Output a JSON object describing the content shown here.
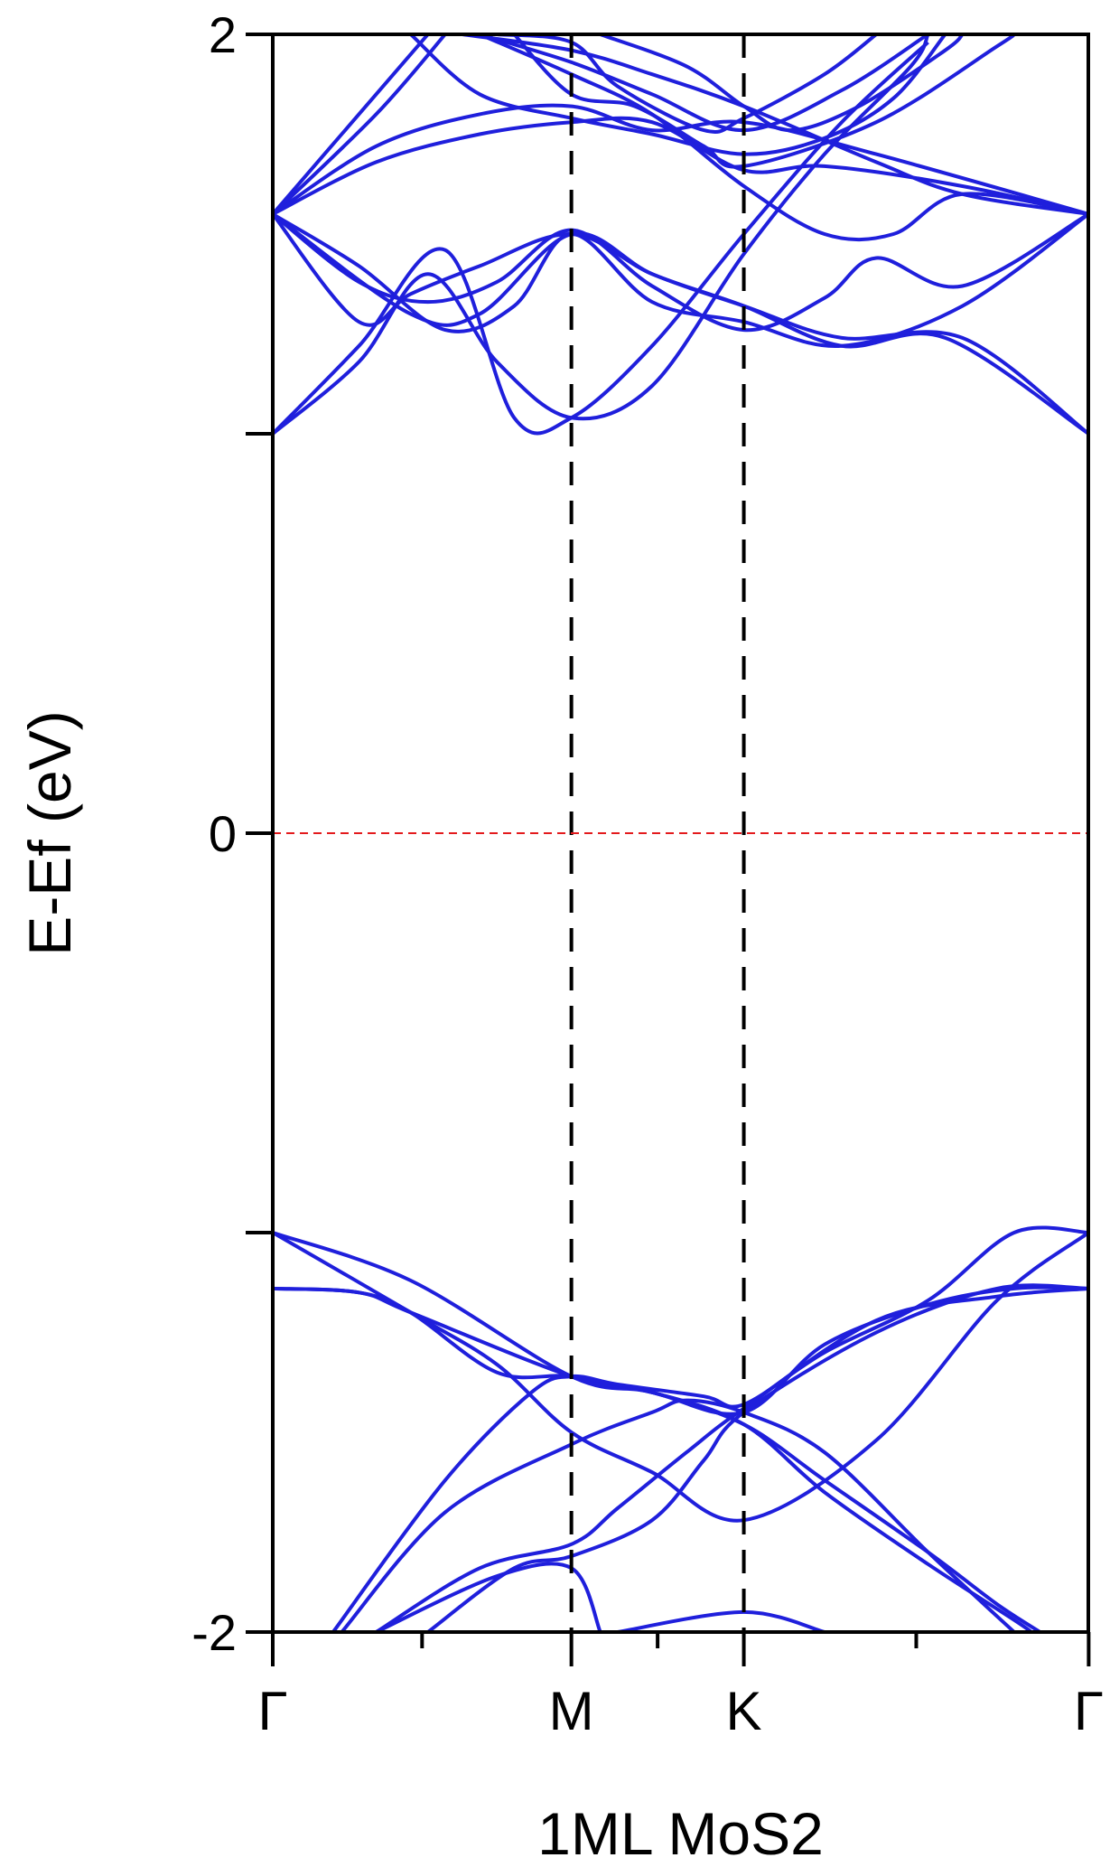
{
  "chart_data": {
    "type": "line",
    "title": "",
    "xlabel": "1ML MoS2",
    "ylabel": "E-Ef (eV)",
    "ylim": [
      -2,
      2
    ],
    "y_ticks": [
      -2,
      -1,
      0,
      1,
      2
    ],
    "y_tick_labels": [
      "-2",
      "",
      "0",
      "",
      "2"
    ],
    "x_range": [
      0,
      4.73
    ],
    "k_points": [
      {
        "label": "Γ",
        "x": 0
      },
      {
        "label": "M",
        "x": 1.732
      },
      {
        "label": "K",
        "x": 2.732
      },
      {
        "label": "Γ",
        "x": 4.732
      }
    ],
    "fermi_level": 0,
    "grid": false,
    "legend": "none",
    "colors": {
      "bands": "#1f1fdc",
      "fermi": "#e31a1c",
      "highsym": "#000000"
    },
    "bands": [
      {
        "name": "",
        "points": [
          [
            0,
            -1.0
          ],
          [
            0.8,
            -1.2
          ],
          [
            1.3,
            -1.33
          ],
          [
            1.732,
            -1.5
          ],
          [
            2.2,
            -1.6
          ],
          [
            2.732,
            -1.72
          ],
          [
            3.5,
            -1.52
          ],
          [
            4.2,
            -1.17
          ],
          [
            4.732,
            -1.0
          ]
        ]
      },
      {
        "name": "",
        "points": [
          [
            0,
            -1.0
          ],
          [
            0.8,
            -1.12
          ],
          [
            1.732,
            -1.36
          ],
          [
            2.2,
            -1.4
          ],
          [
            2.732,
            -1.48
          ],
          [
            3.2,
            -1.62
          ],
          [
            3.8,
            -1.8
          ],
          [
            4.2,
            -1.93
          ],
          [
            4.45,
            -2.0
          ]
        ]
      },
      {
        "name": "",
        "points": [
          [
            0,
            -1.14
          ],
          [
            0.5,
            -1.15
          ],
          [
            0.8,
            -1.2
          ],
          [
            1.732,
            -1.36
          ],
          [
            2.2,
            -1.4
          ],
          [
            2.732,
            -1.48
          ],
          [
            3.2,
            -1.65
          ],
          [
            3.8,
            -1.83
          ],
          [
            4.3,
            -1.97
          ],
          [
            4.4,
            -2.0
          ]
        ]
      },
      {
        "name": "",
        "points": [
          [
            0,
            -1.14
          ],
          [
            0.5,
            -1.15
          ],
          [
            0.8,
            -1.2
          ],
          [
            1.3,
            -1.35
          ],
          [
            1.732,
            -1.36
          ],
          [
            2.2,
            -1.4
          ],
          [
            2.732,
            -1.45
          ],
          [
            3.2,
            -1.28
          ],
          [
            3.8,
            -1.18
          ],
          [
            4.3,
            -1.14
          ],
          [
            4.732,
            -1.14
          ]
        ]
      },
      {
        "name": "",
        "points": [
          [
            0.35,
            -2.0
          ],
          [
            1.0,
            -1.62
          ],
          [
            1.5,
            -1.4
          ],
          [
            1.732,
            -1.36
          ],
          [
            2.0,
            -1.38
          ],
          [
            2.5,
            -1.41
          ],
          [
            2.732,
            -1.43
          ],
          [
            3.2,
            -1.3
          ],
          [
            3.8,
            -1.17
          ],
          [
            4.3,
            -1.0
          ],
          [
            4.732,
            -1.0
          ]
        ]
      },
      {
        "name": "",
        "points": [
          [
            0.4,
            -2.0
          ],
          [
            1.0,
            -1.7
          ],
          [
            1.732,
            -1.53
          ],
          [
            2.2,
            -1.45
          ],
          [
            2.4,
            -1.42
          ],
          [
            2.732,
            -1.45
          ],
          [
            3.2,
            -1.55
          ],
          [
            3.8,
            -1.8
          ],
          [
            4.3,
            -2.0
          ]
        ]
      },
      {
        "name": "",
        "points": [
          [
            0.6,
            -2.0
          ],
          [
            1.2,
            -1.84
          ],
          [
            1.732,
            -1.78
          ],
          [
            2.0,
            -1.69
          ],
          [
            2.4,
            -1.55
          ],
          [
            2.732,
            -1.44
          ],
          [
            3.5,
            -1.22
          ],
          [
            4.2,
            -1.16
          ],
          [
            4.732,
            -1.14
          ]
        ]
      },
      {
        "name": "",
        "points": [
          [
            0.9,
            -2.0
          ],
          [
            1.4,
            -1.84
          ],
          [
            1.732,
            -1.81
          ],
          [
            2.2,
            -1.72
          ],
          [
            2.5,
            -1.57
          ],
          [
            2.732,
            -1.45
          ],
          [
            3.5,
            -1.25
          ],
          [
            4.2,
            -1.14
          ],
          [
            4.732,
            -1.14
          ]
        ]
      },
      {
        "name": "",
        "points": [
          [
            0.6,
            -2.0
          ],
          [
            1.3,
            -1.86
          ],
          [
            1.732,
            -1.84
          ],
          [
            1.9,
            -2.0
          ]
        ]
      },
      {
        "name": "",
        "points": [
          [
            2.0,
            -2.0
          ],
          [
            2.732,
            -1.95
          ],
          [
            3.2,
            -2.0
          ]
        ]
      },
      {
        "name": "",
        "points": [
          [
            0,
            1.0
          ],
          [
            0.5,
            1.22
          ],
          [
            1.0,
            1.46
          ],
          [
            1.4,
            1.04
          ],
          [
            1.732,
            1.04
          ],
          [
            2.2,
            1.22
          ],
          [
            2.732,
            1.5
          ],
          [
            3.3,
            1.78
          ],
          [
            3.8,
            1.98
          ]
        ]
      },
      {
        "name": "",
        "points": [
          [
            0,
            1.0
          ],
          [
            0.5,
            1.18
          ],
          [
            0.9,
            1.4
          ],
          [
            1.3,
            1.18
          ],
          [
            1.732,
            1.04
          ],
          [
            2.2,
            1.12
          ],
          [
            2.732,
            1.45
          ],
          [
            3.2,
            1.7
          ],
          [
            3.7,
            1.92
          ],
          [
            3.8,
            2.0
          ]
        ]
      },
      {
        "name": "",
        "points": [
          [
            0,
            1.55
          ],
          [
            0.5,
            1.42
          ],
          [
            1.0,
            1.26
          ],
          [
            1.4,
            1.32
          ],
          [
            1.732,
            1.5
          ],
          [
            2.2,
            1.33
          ],
          [
            2.732,
            1.28
          ],
          [
            3.3,
            1.22
          ],
          [
            4.0,
            1.32
          ],
          [
            4.732,
            1.55
          ]
        ]
      },
      {
        "name": "",
        "points": [
          [
            0,
            1.55
          ],
          [
            0.5,
            1.38
          ],
          [
            0.9,
            1.33
          ],
          [
            1.3,
            1.38
          ],
          [
            1.732,
            1.51
          ],
          [
            2.2,
            1.37
          ],
          [
            2.732,
            1.26
          ],
          [
            3.2,
            1.34
          ],
          [
            3.5,
            1.44
          ],
          [
            4.0,
            1.37
          ],
          [
            4.732,
            1.55
          ]
        ]
      },
      {
        "name": "",
        "points": [
          [
            0,
            1.55
          ],
          [
            0.5,
            1.28
          ],
          [
            0.8,
            1.35
          ],
          [
            1.2,
            1.42
          ],
          [
            1.732,
            1.5
          ],
          [
            2.2,
            1.4
          ],
          [
            2.732,
            1.32
          ],
          [
            3.3,
            1.22
          ],
          [
            3.9,
            1.24
          ],
          [
            4.732,
            1.0
          ]
        ]
      },
      {
        "name": "",
        "points": [
          [
            0,
            1.55
          ],
          [
            0.8,
            1.3
          ],
          [
            1.2,
            1.3
          ],
          [
            1.732,
            1.5
          ],
          [
            2.2,
            1.4
          ],
          [
            2.732,
            1.32
          ],
          [
            3.3,
            1.24
          ],
          [
            4.0,
            1.24
          ],
          [
            4.732,
            1.0
          ]
        ]
      },
      {
        "name": "",
        "points": [
          [
            0,
            1.55
          ],
          [
            0.6,
            1.68
          ],
          [
            1.2,
            1.75
          ],
          [
            1.732,
            1.78
          ],
          [
            2.2,
            1.78
          ],
          [
            2.732,
            1.66
          ],
          [
            3.2,
            1.67
          ],
          [
            4.0,
            1.62
          ],
          [
            4.732,
            1.55
          ]
        ]
      },
      {
        "name": "",
        "points": [
          [
            0,
            1.55
          ],
          [
            0.6,
            1.72
          ],
          [
            1.2,
            1.8
          ],
          [
            1.732,
            1.82
          ],
          [
            2.2,
            1.76
          ],
          [
            2.732,
            1.78
          ],
          [
            3.5,
            1.7
          ],
          [
            4.732,
            1.55
          ]
        ]
      },
      {
        "name": "",
        "points": [
          [
            0,
            1.55
          ],
          [
            0.6,
            1.85
          ],
          [
            0.9,
            2.0
          ]
        ]
      },
      {
        "name": "",
        "points": [
          [
            0,
            1.55
          ],
          [
            0.6,
            1.8
          ],
          [
            1.0,
            2.0
          ]
        ]
      },
      {
        "name": "",
        "points": [
          [
            0.8,
            2.0
          ],
          [
            1.2,
            1.85
          ],
          [
            1.732,
            1.79
          ],
          [
            2.2,
            1.75
          ],
          [
            2.732,
            1.7
          ],
          [
            3.2,
            1.74
          ],
          [
            3.6,
            1.84
          ],
          [
            3.9,
            2.0
          ]
        ]
      },
      {
        "name": "",
        "points": [
          [
            1.3,
            2.0
          ],
          [
            1.732,
            1.98
          ],
          [
            2.0,
            1.87
          ],
          [
            2.5,
            1.76
          ],
          [
            2.732,
            1.79
          ],
          [
            3.2,
            1.9
          ],
          [
            3.5,
            2.0
          ]
        ]
      },
      {
        "name": "",
        "points": [
          [
            1.1,
            2.0
          ],
          [
            1.732,
            1.96
          ],
          [
            2.2,
            1.9
          ],
          [
            2.732,
            1.82
          ],
          [
            3.5,
            1.68
          ],
          [
            4.0,
            1.6
          ],
          [
            4.732,
            1.55
          ]
        ]
      },
      {
        "name": "",
        "points": [
          [
            1.2,
            2.0
          ],
          [
            1.732,
            1.93
          ],
          [
            2.2,
            1.85
          ],
          [
            2.732,
            1.76
          ],
          [
            3.3,
            1.86
          ],
          [
            3.8,
            2.0
          ]
        ]
      },
      {
        "name": "",
        "points": [
          [
            1.4,
            2.0
          ],
          [
            1.732,
            1.85
          ],
          [
            2.1,
            1.82
          ],
          [
            2.5,
            1.72
          ],
          [
            2.732,
            1.67
          ],
          [
            3.5,
            1.78
          ],
          [
            4.2,
            1.97
          ],
          [
            4.3,
            2.0
          ]
        ]
      },
      {
        "name": "",
        "points": [
          [
            1.2,
            2.0
          ],
          [
            1.732,
            1.9
          ],
          [
            2.2,
            1.8
          ],
          [
            2.732,
            1.62
          ],
          [
            3.2,
            1.5
          ],
          [
            3.6,
            1.5
          ],
          [
            4.0,
            1.6
          ],
          [
            4.732,
            1.55
          ]
        ]
      },
      {
        "name": "",
        "points": [
          [
            1.9,
            2.0
          ],
          [
            2.4,
            1.92
          ],
          [
            2.732,
            1.82
          ],
          [
            3.0,
            1.76
          ],
          [
            3.4,
            1.82
          ],
          [
            3.9,
            1.96
          ],
          [
            4.0,
            2.0
          ]
        ]
      }
    ]
  }
}
